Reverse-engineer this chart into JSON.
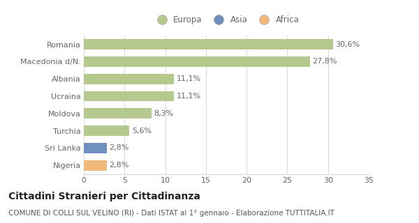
{
  "categories": [
    "Romania",
    "Macedonia d/N.",
    "Albania",
    "Ucraina",
    "Moldova",
    "Turchia",
    "Sri Lanka",
    "Nigeria"
  ],
  "values": [
    30.6,
    27.8,
    11.1,
    11.1,
    8.3,
    5.6,
    2.8,
    2.8
  ],
  "labels": [
    "30,6%",
    "27,8%",
    "11,1%",
    "11,1%",
    "8,3%",
    "5,6%",
    "2,8%",
    "2,8%"
  ],
  "bar_colors": [
    "#b5c98e",
    "#b5c98e",
    "#b5c98e",
    "#b5c98e",
    "#b5c98e",
    "#b5c98e",
    "#6f8fbf",
    "#f0b97a"
  ],
  "legend_labels": [
    "Europa",
    "Asia",
    "Africa"
  ],
  "legend_colors": [
    "#b5c98e",
    "#6f8fbf",
    "#f0b97a"
  ],
  "xlim": [
    0,
    35
  ],
  "xticks": [
    0,
    5,
    10,
    15,
    20,
    25,
    30,
    35
  ],
  "title": "Cittadini Stranieri per Cittadinanza",
  "subtitle": "COMUNE DI COLLI SUL VELINO (RI) - Dati ISTAT al 1° gennaio - Elaborazione TUTTITALIA.IT",
  "background_color": "#ffffff",
  "grid_color": "#d8d8d8",
  "label_fontsize": 8,
  "tick_fontsize": 8,
  "title_fontsize": 10,
  "subtitle_fontsize": 7.5
}
